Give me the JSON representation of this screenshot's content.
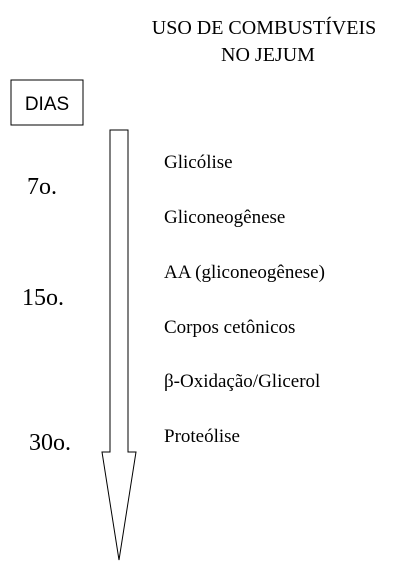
{
  "title": [
    "USO DE COMBUSTÍVEIS",
    "NO JEJUM"
  ],
  "days_label": "DIAS",
  "days": [
    "7o.",
    "15o.",
    "30o."
  ],
  "fuels": [
    "Glicólise",
    "Gliconeogênese",
    "AA (gliconeogênese)",
    "Corpos cetônicos",
    "β-Oxidação/Glicerol",
    "Proteólise"
  ]
}
